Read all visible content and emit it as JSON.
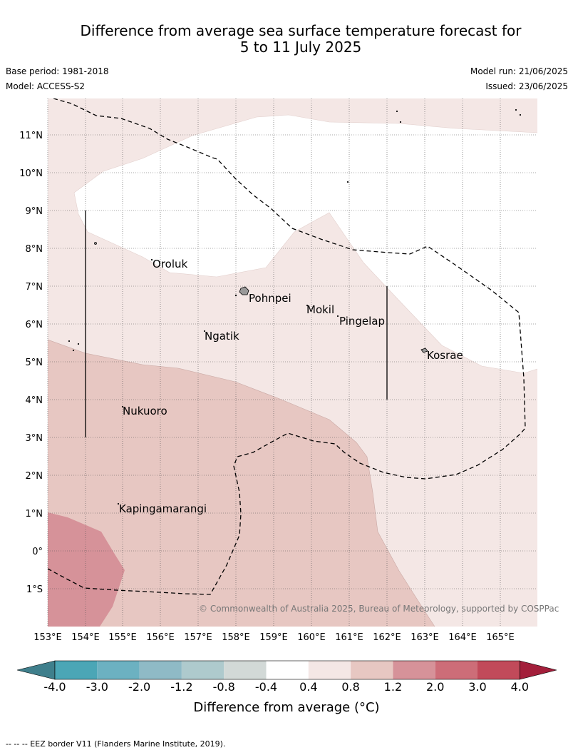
{
  "header": {
    "title_line1": "Difference from average sea surface temperature forecast for",
    "title_line2": "5 to 11 July 2025",
    "base_period": "Base period: 1981-2018",
    "model": "Model: ACCESS-S2",
    "model_run": "Model run: 21/06/2025",
    "issued": "Issued: 23/06/2025"
  },
  "map": {
    "lat_labels": [
      "11°N",
      "10°N",
      "9°N",
      "8°N",
      "7°N",
      "6°N",
      "5°N",
      "4°N",
      "3°N",
      "2°N",
      "1°N",
      "0°",
      "1°S"
    ],
    "lon_labels": [
      "153°E",
      "154°E",
      "155°E",
      "156°E",
      "157°E",
      "158°E",
      "159°E",
      "160°E",
      "161°E",
      "162°E",
      "163°E",
      "164°E",
      "165°E"
    ],
    "places": [
      {
        "name": "Oroluk"
      },
      {
        "name": "Pohnpei"
      },
      {
        "name": "Mokil"
      },
      {
        "name": "Pingelap"
      },
      {
        "name": "Ngatik"
      },
      {
        "name": "Kosrae"
      },
      {
        "name": "Nukuoro"
      },
      {
        "name": "Kapingamarangi"
      }
    ],
    "copyright": "© Commonwealth of Australia 2025, Bureau of Meteorology, supported by COSPPac"
  },
  "legend": {
    "ticks": [
      "-4.0",
      "-3.0",
      "-2.0",
      "-1.2",
      "-0.8",
      "-0.4",
      "0.4",
      "0.8",
      "1.2",
      "2.0",
      "3.0",
      "4.0"
    ],
    "colors": [
      "#3f7f8c",
      "#4ba6b6",
      "#6cb1c1",
      "#8fbac6",
      "#aecacd",
      "#d2d9d7",
      "#ffffff",
      "#f4e7e5",
      "#e7c7c2",
      "#d69299",
      "#cd6d78",
      "#c14a5a",
      "#a31f3b"
    ],
    "label": "Difference from average (°C)"
  },
  "footer": {
    "eez_note": "--  --  -- EEZ border V11 (Flanders Marine Institute, 2019)."
  }
}
